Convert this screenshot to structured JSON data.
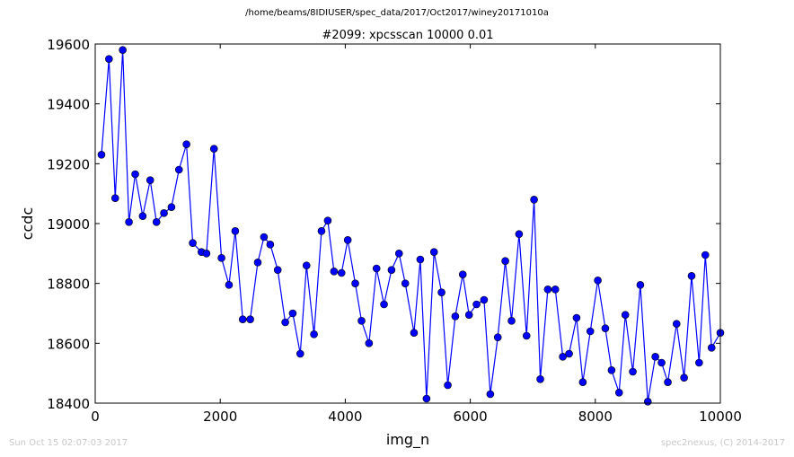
{
  "header": {
    "file_path": "/home/beams/8IDIUSER/spec_data/2017/Oct2017/winey20171010a"
  },
  "footer": {
    "timestamp": "Sun Oct 15 02:07:03 2017",
    "credit": "spec2nexus, (C) 2014-2017"
  },
  "chart_data": {
    "type": "line",
    "title": "#2099: xpcsscan 10000 0.01",
    "xlabel": "img_n",
    "ylabel": "ccdc",
    "xlim": [
      0,
      10000
    ],
    "ylim": [
      18400,
      19600
    ],
    "xticks": [
      0,
      2000,
      4000,
      6000,
      8000,
      10000
    ],
    "yticks": [
      18400,
      18600,
      18800,
      19000,
      19200,
      19400,
      19600
    ],
    "xtick_labels": [
      "0",
      "2000",
      "4000",
      "6000",
      "8000",
      "10000"
    ],
    "ytick_labels": [
      "18400",
      "18600",
      "18800",
      "19000",
      "19200",
      "19400",
      "19600"
    ],
    "grid": false,
    "line_color": "#0000ff",
    "marker": "circle",
    "series": [
      {
        "x": [
          100,
          220,
          320,
          440,
          540,
          640,
          760,
          880,
          980,
          1100,
          1220,
          1340,
          1460,
          1560,
          1700,
          1780,
          1900,
          2020,
          2140,
          2240,
          2360,
          2480,
          2600,
          2700,
          2800,
          2920,
          3040,
          3160,
          3280,
          3380,
          3500,
          3620,
          3720,
          3820,
          3940,
          4040,
          4160,
          4260,
          4380,
          4500,
          4620,
          4740,
          4860,
          4960,
          5100,
          5200,
          5300,
          5420,
          5540,
          5640,
          5760,
          5880,
          5980,
          6100,
          6220,
          6320,
          6440,
          6560,
          6660,
          6780,
          6900,
          7020,
          7120,
          7240,
          7360,
          7480,
          7580,
          7700,
          7800,
          7920,
          8040,
          8160,
          8260,
          8380,
          8480,
          8600,
          8720,
          8840,
          8960,
          9060,
          9160,
          9300,
          9420,
          9540,
          9660,
          9760,
          9860,
          10000
        ],
        "y": [
          19230,
          19550,
          19085,
          19580,
          19005,
          19165,
          19025,
          19145,
          19005,
          19035,
          19055,
          19180,
          19265,
          18935,
          18905,
          18900,
          19250,
          18885,
          18795,
          18975,
          18680,
          18680,
          18870,
          18955,
          18930,
          18845,
          18670,
          18700,
          18565,
          18860,
          18630,
          18975,
          19010,
          18840,
          18835,
          18945,
          18800,
          18675,
          18600,
          18850,
          18730,
          18845,
          18900,
          18800,
          18635,
          18880,
          18415,
          18905,
          18770,
          18460,
          18690,
          18830,
          18695,
          18730,
          18745,
          18430,
          18620,
          18875,
          18675,
          18965,
          18625,
          19080,
          18480,
          18780,
          18780,
          18555,
          18565,
          18685,
          18470,
          18640,
          18810,
          18650,
          18510,
          18435,
          18695,
          18505,
          18795,
          18405,
          18555,
          18535,
          18470,
          18665,
          18485,
          18825,
          18535,
          18895,
          18585,
          18635
        ]
      }
    ]
  }
}
